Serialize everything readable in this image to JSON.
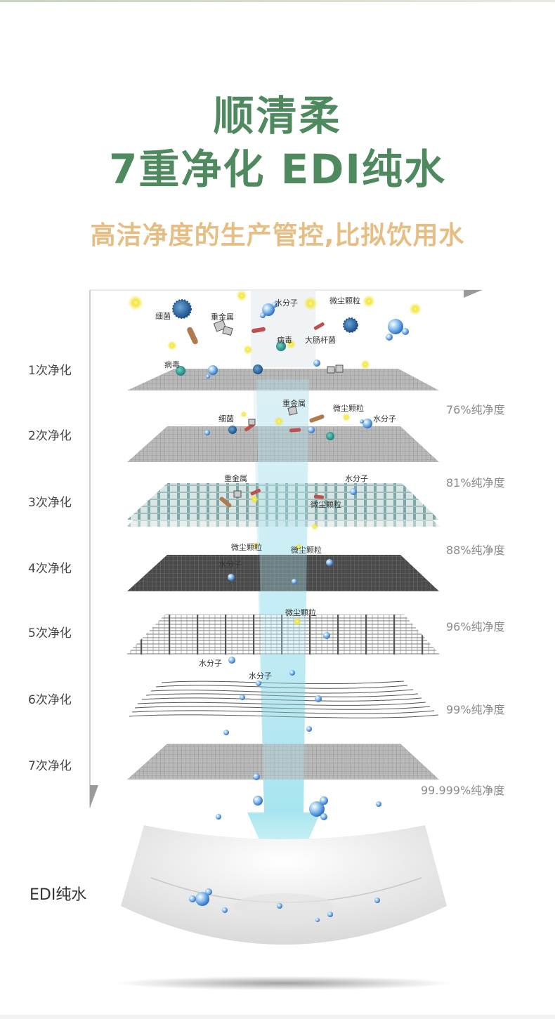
{
  "header": {
    "title_line1": "顺清柔",
    "title_line2": "7重净化 EDI纯水",
    "subtitle": "高洁净度的生产管控,比拟饮用水"
  },
  "colors": {
    "title": "#4f8a5f",
    "subtitle": "#e6bd83",
    "stage_text": "#444444",
    "purity_text": "#8a8a8a"
  },
  "stages": [
    {
      "label": "1次净化"
    },
    {
      "label": "2次净化"
    },
    {
      "label": "3次净化"
    },
    {
      "label": "4次净化"
    },
    {
      "label": "5次净化"
    },
    {
      "label": "6次净化"
    },
    {
      "label": "7次净化"
    }
  ],
  "purity": [
    "76%纯净度",
    "81%纯净度",
    "88%纯净度",
    "96%纯净度",
    "99%纯净度",
    "99.999%纯净度"
  ],
  "particles": {
    "bacteria": "细菌",
    "heavy_metal": "重金属",
    "water_molecule": "水分子",
    "dust": "微尘颗粒",
    "virus": "病毒",
    "ecoli": "大肠杆菌"
  },
  "result": {
    "label": "EDI纯水"
  }
}
